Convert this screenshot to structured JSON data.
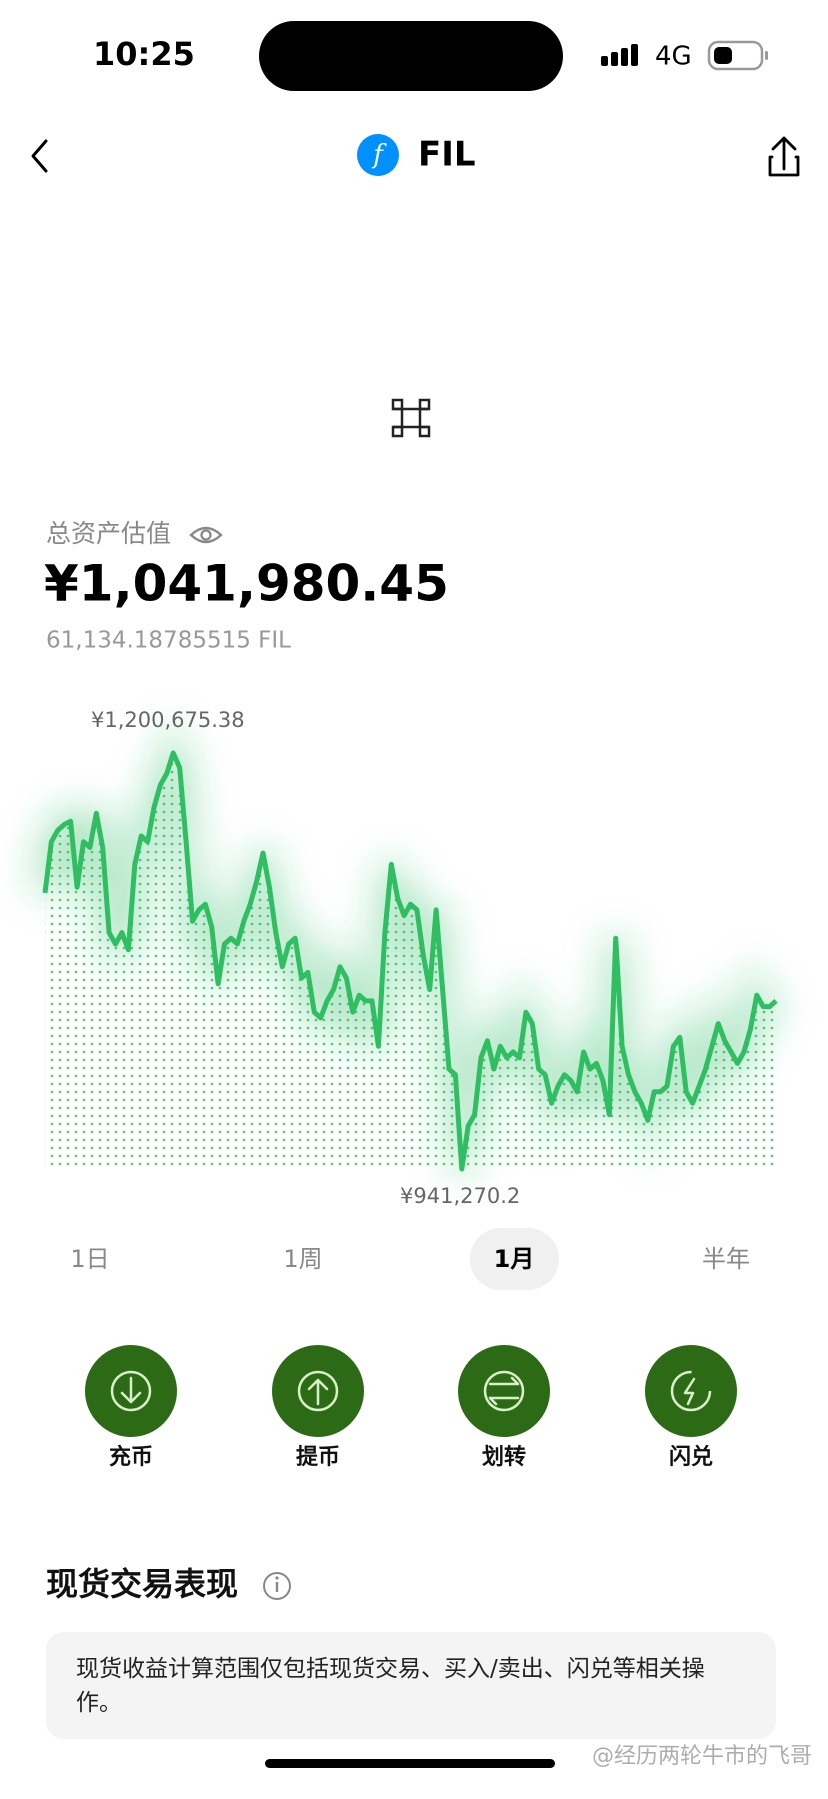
{
  "status_bar": {
    "time": "10:25",
    "network": "4G"
  },
  "header": {
    "title": "FIL"
  },
  "balance": {
    "label": "总资产估值",
    "value": "¥1,041,980.45",
    "amount": "61,134.18785515 FIL"
  },
  "chart_data": {
    "type": "line",
    "color": "#2fbe62",
    "max_label": "¥1,200,675.38",
    "min_label": "¥941,270.2",
    "values": [
      1113468,
      1145373,
      1152463,
      1156008,
      1158135,
      1117013,
      1145373,
      1141828,
      1163098,
      1141828,
      1088653,
      1081563,
      1088653,
      1078018,
      1131193,
      1148918,
      1145373,
      1166643,
      1180823,
      1187913,
      1200675,
      1191458,
      1145373,
      1095743,
      1102833,
      1106378,
      1092198,
      1056748,
      1081563,
      1085108,
      1081563,
      1095743,
      1106378,
      1120558,
      1138283,
      1117013,
      1088653,
      1067383,
      1081563,
      1085108,
      1060293,
      1063838,
      1039023,
      1035478,
      1046113,
      1053203,
      1067383,
      1060293,
      1039023,
      1049658,
      1046113,
      1046113,
      1017753,
      1088653,
      1131193,
      1109923,
      1099288,
      1106378,
      1102833,
      1074473,
      1053203,
      1102833,
      1053203,
      1003573,
      1000028,
      941270,
      968123,
      975213,
      1010663,
      1021298,
      1003573,
      1017753,
      1010663,
      1014208,
      1010663,
      1039023,
      1031933,
      1003573,
      1000028,
      982303,
      992938,
      1000028,
      996483,
      989393,
      1014208,
      1003573,
      1007118,
      996483,
      975213,
      1085108,
      1017753,
      1000028,
      989393,
      982303,
      971668,
      989393,
      989393,
      992938,
      1017753,
      1023425,
      989393,
      982303,
      992938,
      1003573,
      1017753,
      1031933,
      1021298,
      1014208,
      1007118,
      1014208,
      1028388,
      1049658,
      1042568,
      1042568,
      1046113
    ]
  },
  "periods": [
    "1日",
    "1周",
    "1月",
    "半年"
  ],
  "actions": [
    "充币",
    "提币",
    "划转",
    "闪兑"
  ],
  "section": {
    "title": "现货交易表现",
    "note": "现货收益计算范围仅包括现货交易、买入/卖出、闪兑等相关操作。"
  },
  "watermark": "@经历两轮牛市的飞哥"
}
